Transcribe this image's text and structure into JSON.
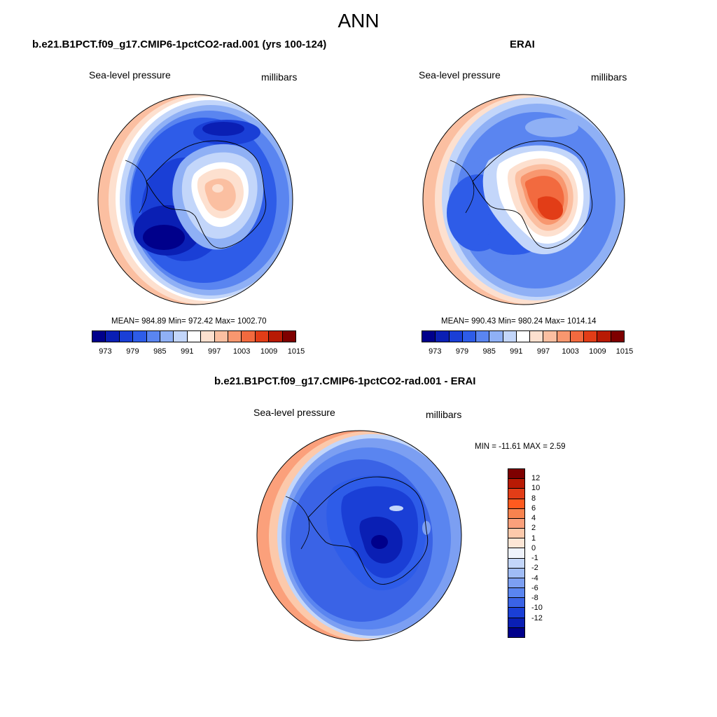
{
  "main_title": "ANN",
  "panels": {
    "model": {
      "title": "b.e21.B1PCT.f09_g17.CMIP6-1pctCO2-rad.001 (yrs 100-124)",
      "variable": "Sea-level pressure",
      "units": "millibars",
      "stats": "MEAN= 984.89  Min= 972.42  Max= 1002.70"
    },
    "obs": {
      "title": "ERAI",
      "variable": "Sea-level pressure",
      "units": "millibars",
      "stats": "MEAN= 990.43  Min= 980.24  Max= 1014.14"
    },
    "diff": {
      "title": "b.e21.B1PCT.f09_g17.CMIP6-1pctCO2-rad.001 - ERAI",
      "variable": "Sea-level pressure",
      "units": "millibars",
      "stats": "MIN = -11.61 MAX =   2.59"
    }
  },
  "colorbar_abs": {
    "labels": [
      "973",
      "979",
      "985",
      "991",
      "997",
      "1003",
      "1009",
      "1015"
    ],
    "colors": [
      "#00008b",
      "#0a1fb4",
      "#1a3fd6",
      "#2e5ce8",
      "#5a85f0",
      "#8fb0f5",
      "#c3d6fa",
      "#ffffff",
      "#fde0cf",
      "#fbbfa1",
      "#f8976f",
      "#f26a3f",
      "#e23d17",
      "#b81a04",
      "#7e0000"
    ]
  },
  "colorbar_diff": {
    "labels": [
      "12",
      "10",
      "8",
      "6",
      "4",
      "2",
      "1",
      "0",
      "-1",
      "-2",
      "-4",
      "-6",
      "-8",
      "-10",
      "-12"
    ],
    "colors": [
      "#7e0000",
      "#b81a04",
      "#e23d17",
      "#ff5a1f",
      "#f8834f",
      "#fba07b",
      "#fcc9ab",
      "#fde6d6",
      "#eef2fb",
      "#c3d6fa",
      "#a0bcf6",
      "#7c9ff2",
      "#5a85f0",
      "#3a63e6",
      "#1a3fd6",
      "#0a1fb4",
      "#00008b"
    ]
  },
  "chart_data": {
    "type": "heatmap",
    "title": "ANN",
    "fields": [
      {
        "name": "b.e21.B1PCT.f09_g17.CMIP6-1pctCO2-rad.001 (yrs 100-124)",
        "variable": "Sea-level pressure",
        "units": "millibars",
        "mean": 984.89,
        "min": 972.42,
        "max": 1002.7
      },
      {
        "name": "ERAI",
        "variable": "Sea-level pressure",
        "units": "millibars",
        "mean": 990.43,
        "min": 980.24,
        "max": 1014.14
      },
      {
        "name": "b.e21.B1PCT.f09_g17.CMIP6-1pctCO2-rad.001 - ERAI",
        "variable": "Sea-level pressure",
        "units": "millibars",
        "min": -11.61,
        "max": 2.59
      }
    ],
    "levels_abs": [
      973,
      979,
      985,
      991,
      997,
      1003,
      1009,
      1015
    ],
    "levels_diff": [
      -12,
      -10,
      -8,
      -6,
      -4,
      -2,
      -1,
      0,
      1,
      2,
      4,
      6,
      8,
      10,
      12
    ]
  }
}
